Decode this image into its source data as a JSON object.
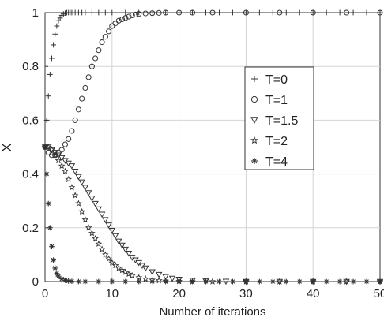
{
  "chart_data": {
    "type": "scatter",
    "title": "",
    "xlabel": "Number of iterations",
    "ylabel": "X",
    "xlim": [
      0,
      50
    ],
    "ylim": [
      0,
      1
    ],
    "xticks": [
      "0",
      "10",
      "20",
      "30",
      "40",
      "50"
    ],
    "yticks": [
      "0",
      "0.2",
      "0.4",
      "0.6",
      "0.8",
      "1"
    ],
    "grid": true,
    "legend_position": "center-right",
    "series": [
      {
        "name": "T=0",
        "marker": "plus",
        "x": [
          0,
          0.25,
          0.5,
          0.75,
          1,
          1.25,
          1.5,
          1.75,
          2,
          2.25,
          2.5,
          2.75,
          3,
          3.25,
          3.5,
          3.75,
          4,
          4.5,
          5,
          5.5,
          6,
          7,
          8,
          9,
          10,
          12,
          14,
          16,
          18,
          20,
          22,
          24,
          26,
          28,
          30,
          32,
          34,
          36,
          38,
          40,
          42,
          44,
          46,
          48,
          50
        ],
        "values": [
          0.5,
          0.6,
          0.69,
          0.77,
          0.83,
          0.88,
          0.92,
          0.95,
          0.97,
          0.98,
          0.99,
          0.995,
          0.998,
          1,
          1,
          1,
          1,
          1,
          1,
          1,
          1,
          1,
          1,
          1,
          1,
          1,
          1,
          1,
          1,
          1,
          1,
          1,
          1,
          1,
          1,
          1,
          1,
          1,
          1,
          1,
          1,
          1,
          1,
          1,
          1
        ]
      },
      {
        "name": "T=1",
        "marker": "circle",
        "x": [
          0,
          0.5,
          1,
          1.5,
          2,
          2.5,
          3,
          3.5,
          4,
          4.5,
          5,
          5.5,
          6,
          6.5,
          7,
          7.5,
          8,
          8.5,
          9,
          9.5,
          10,
          10.5,
          11,
          11.5,
          12,
          12.5,
          13,
          13.5,
          14,
          15,
          16,
          17,
          18,
          20,
          22,
          25,
          30,
          35,
          40,
          45,
          50
        ],
        "values": [
          0.5,
          0.48,
          0.47,
          0.47,
          0.48,
          0.49,
          0.51,
          0.53,
          0.56,
          0.6,
          0.64,
          0.68,
          0.72,
          0.76,
          0.8,
          0.83,
          0.86,
          0.89,
          0.91,
          0.93,
          0.95,
          0.96,
          0.97,
          0.975,
          0.98,
          0.985,
          0.99,
          0.993,
          0.995,
          0.997,
          0.998,
          0.999,
          1,
          1,
          1,
          1,
          1,
          1,
          1,
          1,
          1
        ]
      },
      {
        "name": "T=1.5",
        "marker": "triangle-down",
        "x": [
          0,
          0.5,
          1,
          1.5,
          2,
          2.5,
          3,
          3.5,
          4,
          4.5,
          5,
          5.5,
          6,
          6.5,
          7,
          7.5,
          8,
          8.5,
          9,
          9.5,
          10,
          10.5,
          11,
          11.5,
          12,
          12.5,
          13,
          13.5,
          14,
          14.5,
          15,
          16,
          17,
          18,
          19,
          20,
          22,
          24,
          27,
          30,
          35,
          40,
          45,
          50
        ],
        "values": [
          0.5,
          0.5,
          0.49,
          0.48,
          0.47,
          0.46,
          0.45,
          0.44,
          0.43,
          0.41,
          0.39,
          0.37,
          0.35,
          0.33,
          0.31,
          0.29,
          0.27,
          0.25,
          0.23,
          0.21,
          0.19,
          0.17,
          0.15,
          0.135,
          0.12,
          0.105,
          0.09,
          0.08,
          0.07,
          0.06,
          0.05,
          0.036,
          0.026,
          0.018,
          0.012,
          0.008,
          0.004,
          0.002,
          0.001,
          0,
          0,
          0,
          0,
          0
        ]
      },
      {
        "name": "T=2",
        "marker": "star",
        "x": [
          0,
          0.5,
          1,
          1.5,
          2,
          2.5,
          3,
          3.5,
          4,
          4.5,
          5,
          5.5,
          6,
          6.5,
          7,
          7.5,
          8,
          8.5,
          9,
          9.5,
          10,
          10.5,
          11,
          11.5,
          12,
          12.5,
          13,
          14,
          15,
          16,
          17,
          18,
          20,
          22,
          25,
          30,
          35,
          40,
          45,
          50
        ],
        "values": [
          0.5,
          0.5,
          0.49,
          0.47,
          0.45,
          0.43,
          0.41,
          0.38,
          0.35,
          0.32,
          0.29,
          0.26,
          0.23,
          0.2,
          0.18,
          0.16,
          0.14,
          0.12,
          0.1,
          0.085,
          0.07,
          0.06,
          0.05,
          0.042,
          0.035,
          0.028,
          0.022,
          0.015,
          0.01,
          0.006,
          0.004,
          0.002,
          0.001,
          0,
          0,
          0,
          0,
          0,
          0,
          0
        ]
      },
      {
        "name": "T=4",
        "marker": "asterisk",
        "x": [
          0,
          0.25,
          0.5,
          0.75,
          1,
          1.25,
          1.5,
          1.75,
          2,
          2.5,
          3,
          3.5,
          4,
          5,
          6,
          8,
          10,
          12,
          14,
          16,
          18,
          20,
          22,
          24,
          26,
          28,
          30,
          32,
          34,
          36,
          38,
          40,
          42,
          44,
          46,
          48,
          50
        ],
        "values": [
          0.5,
          0.4,
          0.29,
          0.2,
          0.13,
          0.08,
          0.05,
          0.03,
          0.02,
          0.01,
          0.005,
          0.002,
          0.001,
          0,
          0,
          0,
          0,
          0,
          0,
          0,
          0,
          0,
          0,
          0,
          0,
          0,
          0,
          0,
          0,
          0,
          0,
          0,
          0,
          0,
          0,
          0,
          0
        ]
      }
    ]
  }
}
